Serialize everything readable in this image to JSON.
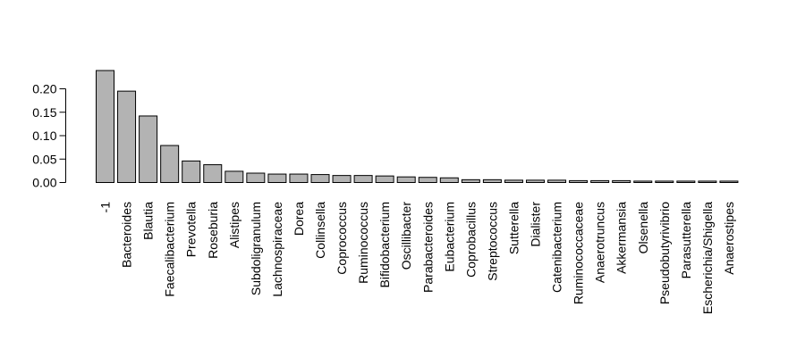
{
  "chart_data": {
    "type": "bar",
    "categories": [
      "-1",
      "Bacteroides",
      "Blautia",
      "Faecalibacterium",
      "Prevotella",
      "Roseburia",
      "Alistipes",
      "Subdoligranulum",
      "Lachnospiraceae",
      "Dorea",
      "Collinsella",
      "Coprococcus",
      "Ruminococcus",
      "Bifidobacterium",
      "Oscillibacter",
      "Parabacteroides",
      "Eubacterium",
      "Coprobacillus",
      "Streptococcus",
      "Sutterella",
      "Dialister",
      "Catenibacterium",
      "Ruminococcaceae",
      "Anaerotruncus",
      "Akkermansia",
      "Olsenella",
      "Pseudobutyrivibrio",
      "Parasutterella",
      "Escherichia/Shigella",
      "Anaerostipes"
    ],
    "values": [
      0.239,
      0.195,
      0.142,
      0.079,
      0.046,
      0.038,
      0.024,
      0.02,
      0.018,
      0.018,
      0.017,
      0.015,
      0.015,
      0.014,
      0.012,
      0.011,
      0.01,
      0.006,
      0.006,
      0.005,
      0.005,
      0.005,
      0.004,
      0.004,
      0.004,
      0.003,
      0.003,
      0.003,
      0.003,
      0.003
    ],
    "yticks": [
      "0.00",
      "0.05",
      "0.10",
      "0.15",
      "0.20"
    ],
    "ylim": [
      0,
      0.24
    ],
    "title": "",
    "xlabel": "",
    "ylabel": "",
    "bar_color": "#b3b3b3",
    "edge_color": "#000000",
    "grid": false
  }
}
